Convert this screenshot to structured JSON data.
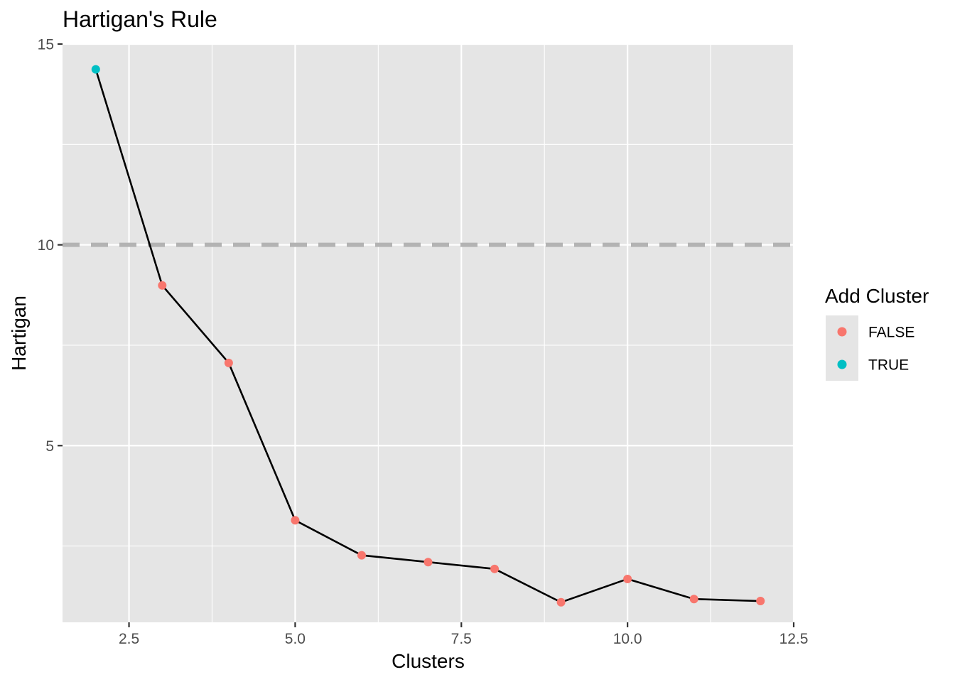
{
  "chart_data": {
    "type": "line",
    "title": "Hartigan's Rule",
    "xlabel": "Clusters",
    "ylabel": "Hartigan",
    "xlim": [
      1.5,
      12.5
    ],
    "ylim": [
      0.6,
      15
    ],
    "x_ticks": [
      2.5,
      5.0,
      7.5,
      10.0,
      12.5
    ],
    "x_tick_labels": [
      "2.5",
      "5.0",
      "7.5",
      "10.0",
      "12.5"
    ],
    "y_ticks": [
      5,
      10,
      15
    ],
    "y_tick_labels": [
      "5",
      "10",
      "15"
    ],
    "grid": true,
    "reference_line": {
      "y": 10,
      "style": "dashed",
      "color": "#b3b3b3"
    },
    "line_color": "#000000",
    "x": [
      2,
      3,
      4,
      5,
      6,
      7,
      8,
      9,
      10,
      11,
      12
    ],
    "y": [
      14.37,
      8.99,
      7.06,
      3.14,
      2.27,
      2.1,
      1.93,
      1.1,
      1.68,
      1.18,
      1.13
    ],
    "group": [
      "TRUE",
      "FALSE",
      "FALSE",
      "FALSE",
      "FALSE",
      "FALSE",
      "FALSE",
      "FALSE",
      "FALSE",
      "FALSE",
      "FALSE"
    ],
    "legend": {
      "title": "Add Cluster",
      "position": "right",
      "entries": [
        {
          "label": "FALSE",
          "color": "#F8766D"
        },
        {
          "label": "TRUE",
          "color": "#00BFC4"
        }
      ]
    },
    "panel_background": "#e5e5e5",
    "grid_color": "#ffffff"
  }
}
